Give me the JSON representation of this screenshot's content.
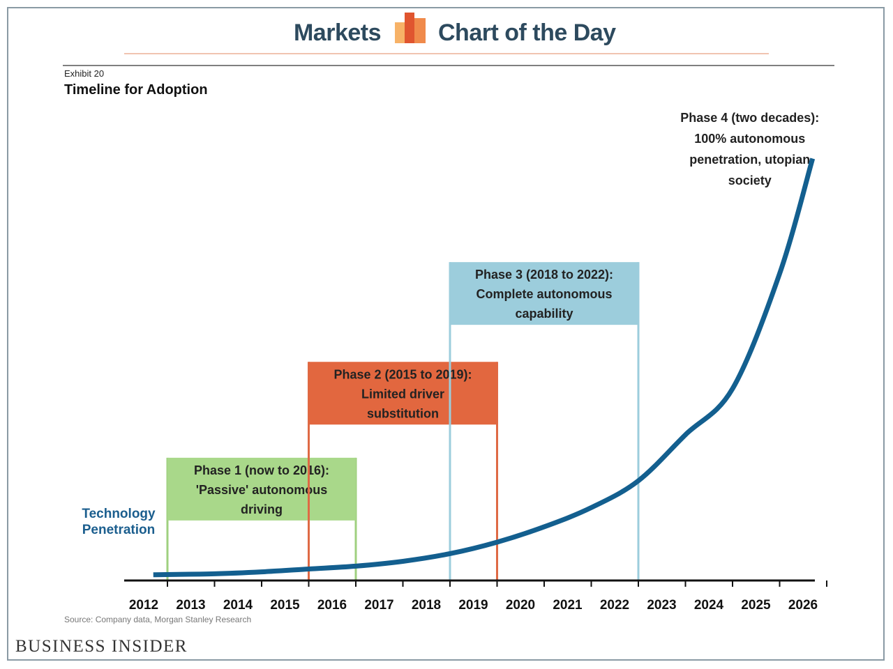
{
  "header": {
    "left_text": "Markets",
    "right_text": "Chart of the Day",
    "logo_colors": [
      "#f7b267",
      "#f08a4b",
      "#e0552f"
    ]
  },
  "exhibit": "Exhibit 20",
  "source": "Source: Company data, Morgan Stanley Research",
  "brand": "BUSINESS INSIDER",
  "chart_data": {
    "type": "line",
    "title": "Timeline for Adoption",
    "xlabel": "",
    "ylabel": "",
    "x_categories": [
      "2012",
      "2013",
      "2014",
      "2015",
      "2016",
      "2017",
      "2018",
      "2019",
      "2020",
      "2021",
      "2022",
      "2023",
      "2024",
      "2025",
      "2026"
    ],
    "series": [
      {
        "name": "Technology Penetration",
        "color": "#135f8f",
        "x": [
          2011.7,
          2013,
          2014,
          2015,
          2016,
          2017,
          2018,
          2019,
          2020,
          2021,
          2022,
          2023,
          2024,
          2025,
          2025.7
        ],
        "values": [
          0.03,
          0.035,
          0.045,
          0.06,
          0.075,
          0.1,
          0.14,
          0.2,
          0.28,
          0.38,
          0.52,
          0.76,
          1.0,
          1.6,
          2.2
        ]
      }
    ],
    "ylim": [
      0,
      2.3
    ],
    "grid": false,
    "phases": [
      {
        "lines": [
          "Phase 1 (now to 2016):",
          "'Passive' autonomous",
          "driving"
        ],
        "start": 2012,
        "end": 2016,
        "level": 0.64,
        "fill": "#a9d88a",
        "stroke": "#9fd07f"
      },
      {
        "lines": [
          "Phase 2 (2015 to 2019):",
          "Limited driver",
          "substitution"
        ],
        "start": 2015,
        "end": 2019,
        "level": 1.14,
        "fill": "#e2673f",
        "stroke": "#df6a45"
      },
      {
        "lines": [
          "Phase 3 (2018 to 2022):",
          "Complete autonomous",
          "capability"
        ],
        "start": 2018,
        "end": 2022,
        "level": 1.66,
        "fill": "#9ccddc",
        "stroke": "#9ccddc"
      },
      {
        "lines": [
          "Phase 4 (two decades):",
          "100% autonomous",
          "penetration, utopian",
          "society"
        ],
        "start": 2025.7,
        "end": 2025.7,
        "level": 2.2,
        "fill": "",
        "stroke": ""
      }
    ],
    "series_label_lines": [
      "Technology",
      "Penetration"
    ]
  }
}
